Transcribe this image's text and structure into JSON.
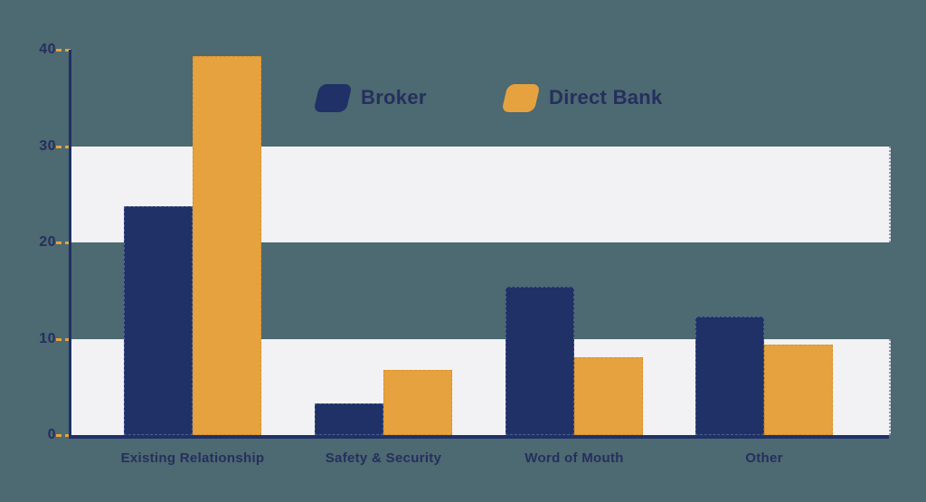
{
  "chart_data": {
    "type": "bar",
    "title": "",
    "xlabel": "",
    "ylabel": "",
    "categories": [
      "Existing Relationship",
      "Safety & Security",
      "Word of Mouth",
      "Other"
    ],
    "series": [
      {
        "name": "Broker",
        "color": "#1f3166",
        "values": [
          23.8,
          3.3,
          15.4,
          12.3
        ]
      },
      {
        "name": "Direct Bank",
        "color": "#e6a23f",
        "values": [
          39.3,
          6.8,
          8.1,
          9.4
        ]
      }
    ],
    "ylim": [
      0,
      40
    ],
    "yticks": [
      0,
      10,
      20,
      30,
      40
    ],
    "bands": [
      [
        20,
        30
      ],
      [
        0,
        10
      ]
    ],
    "grid": "alternating-horizontal-bands",
    "legend_position": "top-center"
  },
  "colors": {
    "background": "#4d6971",
    "band": "#f2f1f4",
    "axis": "#1f3166",
    "tick_dash": "#e6a23f",
    "text": "#252f5e",
    "series_broker": "#1f3166",
    "series_direct_bank": "#e6a23f"
  },
  "legend": {
    "items": [
      {
        "label": "Broker",
        "color": "#1f3166"
      },
      {
        "label": "Direct Bank",
        "color": "#e6a23f"
      }
    ]
  }
}
